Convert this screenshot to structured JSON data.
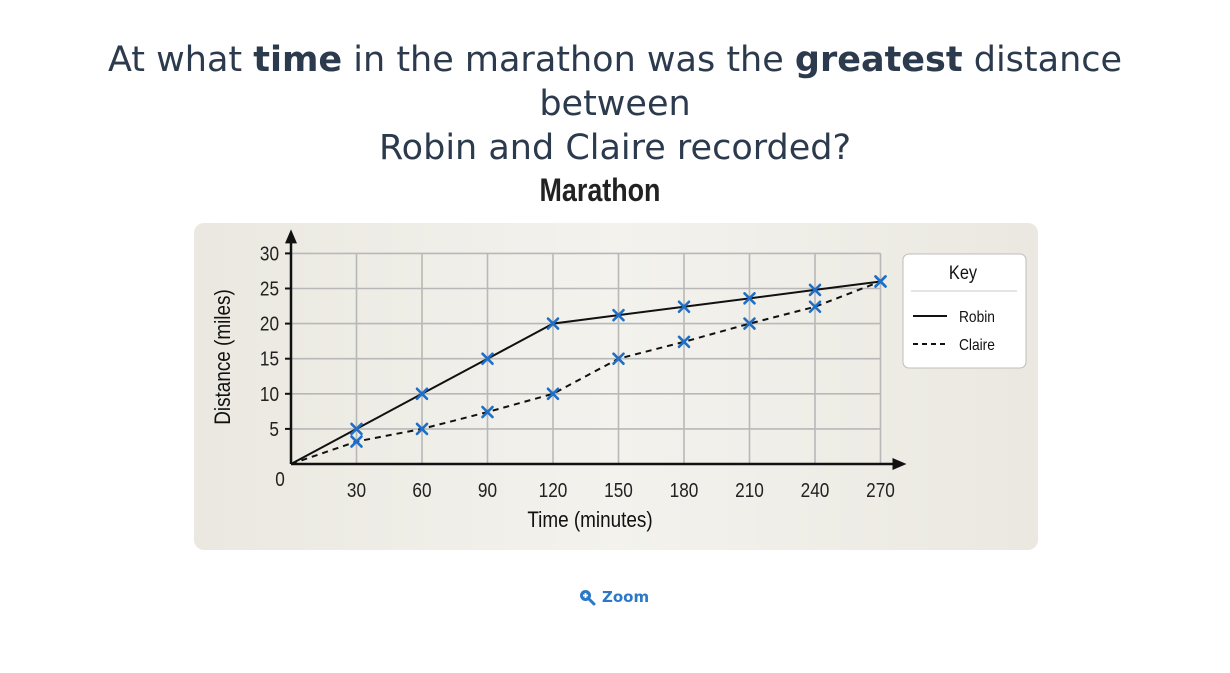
{
  "question": {
    "part1": "At what ",
    "bold1": "time",
    "part2": " in the marathon was the ",
    "bold2": "greatest",
    "part3": " distance between",
    "line2": "Robin and Claire recorded?"
  },
  "zoom": {
    "label": "Zoom",
    "icon": "zoom-in-icon",
    "color": "#2c78c8"
  },
  "chart_data": {
    "type": "line",
    "title": "Marathon",
    "xlabel": "Time (minutes)",
    "ylabel": "Distance (miles)",
    "xlim": [
      0,
      270
    ],
    "ylim": [
      0,
      30
    ],
    "x_ticks": [
      "0",
      "30",
      "60",
      "90",
      "120",
      "150",
      "180",
      "210",
      "240",
      "270"
    ],
    "y_ticks": [
      "5",
      "10",
      "15",
      "20",
      "25",
      "30"
    ],
    "grid": true,
    "legend": {
      "title": "Key",
      "placement": "right"
    },
    "series": [
      {
        "name": "Robin",
        "style": "solid",
        "x": [
          0,
          30,
          60,
          90,
          120,
          150,
          180,
          210,
          240,
          270
        ],
        "values": [
          0,
          5,
          10,
          15,
          20,
          21.2,
          22.4,
          23.6,
          24.8,
          26
        ]
      },
      {
        "name": "Claire",
        "style": "dashed",
        "x": [
          0,
          30,
          60,
          90,
          120,
          150,
          180,
          210,
          240,
          270
        ],
        "values": [
          0,
          3.2,
          5,
          7.4,
          10,
          15,
          17.4,
          20,
          22.4,
          26
        ]
      }
    ],
    "colors": {
      "panel": "#efede6",
      "grid": "#b8b8b8",
      "axis": "#111111",
      "marker": "#1f6fc6",
      "line": "#111111"
    }
  }
}
